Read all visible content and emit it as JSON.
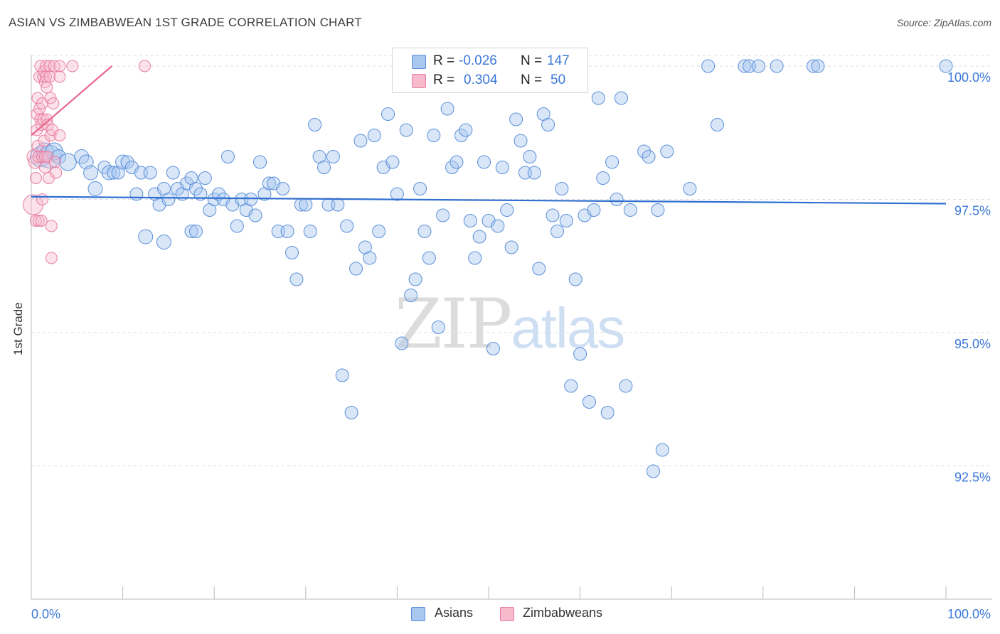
{
  "header": {
    "title": "ASIAN VS ZIMBABWEAN 1ST GRADE CORRELATION CHART",
    "source": "Source: ZipAtlas.com"
  },
  "watermark": {
    "zip": "ZIP",
    "atlas": "atlas"
  },
  "legend": {
    "asians": {
      "r_label": "R =",
      "r_value": "-0.026",
      "n_label": "N =",
      "n_value": "147"
    },
    "zimbabweans": {
      "r_label": "R =",
      "r_value": "0.304",
      "n_label": "N =",
      "n_value": "50"
    }
  },
  "bottom_legend": {
    "asians": "Asians",
    "zimbabweans": "Zimbabweans"
  },
  "colors": {
    "asian_fill": "#a9c8f0",
    "asian_stroke": "#5b8fd9",
    "asian_line": "#2f6fd0",
    "zim_fill": "#f7b9cc",
    "zim_stroke": "#e87ea0",
    "zim_line": "#e8678f",
    "tick_label": "#3b78d8",
    "grid": "#dcdcdc"
  },
  "chart_data": {
    "type": "scatter",
    "title": "ASIAN VS ZIMBABWEAN 1ST GRADE CORRELATION CHART",
    "xlabel": "",
    "ylabel": "1st Grade",
    "xlim": [
      0,
      100
    ],
    "ylim": [
      90.0,
      100.2
    ],
    "x_tick_labels": [
      "0.0%",
      "100.0%"
    ],
    "y_ticks": [
      92.5,
      95.0,
      97.5,
      100.0
    ],
    "y_tick_labels": [
      "92.5%",
      "95.0%",
      "97.5%",
      "100.0%"
    ],
    "grid": true,
    "legend_position": "top-center",
    "series": [
      {
        "name": "Asians",
        "r": -0.026,
        "n": 147,
        "trend": {
          "x": [
            0,
            100
          ],
          "y": [
            97.55,
            97.42
          ]
        },
        "points": [
          [
            1.0,
            98.3,
            14
          ],
          [
            1.5,
            98.4,
            12
          ],
          [
            2.0,
            98.3,
            16
          ],
          [
            2.5,
            98.4,
            12
          ],
          [
            3.0,
            98.3,
            10
          ],
          [
            4.0,
            98.2,
            12
          ],
          [
            5.5,
            98.3,
            10
          ],
          [
            6.0,
            98.2,
            10
          ],
          [
            6.5,
            98.0,
            10
          ],
          [
            7.0,
            97.7,
            10
          ],
          [
            8.0,
            98.1,
            9
          ],
          [
            8.5,
            98.0,
            10
          ],
          [
            9.0,
            98.0,
            9
          ],
          [
            9.5,
            98.0,
            9
          ],
          [
            10.0,
            98.2,
            10
          ],
          [
            10.5,
            98.2,
            9
          ],
          [
            11.0,
            98.1,
            9
          ],
          [
            11.5,
            97.6,
            9
          ],
          [
            12.0,
            98.0,
            9
          ],
          [
            13.0,
            98.0,
            9
          ],
          [
            13.5,
            97.6,
            9
          ],
          [
            12.5,
            96.8,
            10
          ],
          [
            14.0,
            97.4,
            9
          ],
          [
            14.5,
            97.7,
            9
          ],
          [
            15.0,
            97.5,
            9
          ],
          [
            15.5,
            98.0,
            9
          ],
          [
            16.0,
            97.7,
            9
          ],
          [
            16.5,
            97.6,
            9
          ],
          [
            17.0,
            97.8,
            9
          ],
          [
            17.5,
            97.9,
            9
          ],
          [
            18.0,
            97.7,
            9
          ],
          [
            14.5,
            96.7,
            10
          ],
          [
            17.5,
            96.9,
            9
          ],
          [
            18.0,
            96.9,
            9
          ],
          [
            18.5,
            97.6,
            9
          ],
          [
            19.0,
            97.9,
            9
          ],
          [
            19.5,
            97.3,
            9
          ],
          [
            20.0,
            97.5,
            9
          ],
          [
            20.5,
            97.6,
            9
          ],
          [
            21.0,
            97.5,
            9
          ],
          [
            21.5,
            98.3,
            9
          ],
          [
            22.0,
            97.4,
            9
          ],
          [
            22.5,
            97.0,
            9
          ],
          [
            23.0,
            97.5,
            9
          ],
          [
            23.5,
            97.3,
            9
          ],
          [
            24.0,
            97.5,
            9
          ],
          [
            24.5,
            97.2,
            9
          ],
          [
            25.0,
            98.2,
            9
          ],
          [
            25.5,
            97.6,
            9
          ],
          [
            26.0,
            97.8,
            9
          ],
          [
            26.5,
            97.8,
            9
          ],
          [
            27.0,
            96.9,
            9
          ],
          [
            27.5,
            97.7,
            9
          ],
          [
            28.0,
            96.9,
            9
          ],
          [
            28.5,
            96.5,
            9
          ],
          [
            29.0,
            96.0,
            9
          ],
          [
            29.5,
            97.4,
            9
          ],
          [
            30.0,
            97.4,
            9
          ],
          [
            30.5,
            96.9,
            9
          ],
          [
            31.0,
            98.9,
            9
          ],
          [
            31.5,
            98.3,
            9
          ],
          [
            32.0,
            98.1,
            9
          ],
          [
            32.5,
            97.4,
            9
          ],
          [
            33.0,
            98.3,
            9
          ],
          [
            33.5,
            97.4,
            9
          ],
          [
            34.0,
            94.2,
            9
          ],
          [
            34.5,
            97.0,
            9
          ],
          [
            35.0,
            93.5,
            9
          ],
          [
            35.5,
            96.2,
            9
          ],
          [
            36.0,
            98.6,
            9
          ],
          [
            36.5,
            96.6,
            9
          ],
          [
            37.0,
            96.4,
            9
          ],
          [
            37.5,
            98.7,
            9
          ],
          [
            38.0,
            96.9,
            9
          ],
          [
            38.5,
            98.1,
            9
          ],
          [
            39.0,
            99.1,
            9
          ],
          [
            39.5,
            98.2,
            9
          ],
          [
            40.0,
            97.6,
            9
          ],
          [
            40.5,
            94.8,
            9
          ],
          [
            41.0,
            98.8,
            9
          ],
          [
            41.5,
            95.7,
            9
          ],
          [
            42.0,
            96.0,
            9
          ],
          [
            42.5,
            97.7,
            9
          ],
          [
            43.0,
            96.9,
            9
          ],
          [
            43.5,
            96.4,
            9
          ],
          [
            44.0,
            98.7,
            9
          ],
          [
            44.5,
            95.1,
            9
          ],
          [
            45.0,
            97.2,
            9
          ],
          [
            45.5,
            99.2,
            9
          ],
          [
            46.0,
            98.1,
            9
          ],
          [
            46.5,
            98.2,
            9
          ],
          [
            47.0,
            98.7,
            9
          ],
          [
            47.5,
            98.8,
            9
          ],
          [
            48.0,
            97.1,
            9
          ],
          [
            48.5,
            96.4,
            9
          ],
          [
            49.0,
            96.8,
            9
          ],
          [
            49.5,
            98.2,
            9
          ],
          [
            50.0,
            97.1,
            9
          ],
          [
            50.5,
            94.7,
            9
          ],
          [
            51.0,
            97.0,
            9
          ],
          [
            51.5,
            98.1,
            9
          ],
          [
            52.0,
            97.3,
            9
          ],
          [
            52.5,
            96.6,
            9
          ],
          [
            53.0,
            99.0,
            9
          ],
          [
            53.5,
            98.6,
            9
          ],
          [
            54.0,
            98.0,
            9
          ],
          [
            54.5,
            98.3,
            9
          ],
          [
            55.0,
            98.0,
            9
          ],
          [
            55.5,
            96.2,
            9
          ],
          [
            56.0,
            99.1,
            9
          ],
          [
            56.5,
            98.9,
            9
          ],
          [
            57.0,
            97.2,
            9
          ],
          [
            57.5,
            96.9,
            9
          ],
          [
            58.0,
            97.7,
            9
          ],
          [
            58.5,
            97.1,
            9
          ],
          [
            59.0,
            94.0,
            9
          ],
          [
            59.5,
            96.0,
            9
          ],
          [
            60.0,
            94.6,
            9
          ],
          [
            60.5,
            97.2,
            9
          ],
          [
            61.0,
            93.7,
            9
          ],
          [
            61.5,
            97.3,
            9
          ],
          [
            62.0,
            99.4,
            9
          ],
          [
            62.5,
            97.9,
            9
          ],
          [
            63.0,
            93.5,
            9
          ],
          [
            63.5,
            98.2,
            9
          ],
          [
            64.0,
            97.5,
            9
          ],
          [
            64.5,
            99.4,
            9
          ],
          [
            65.0,
            94.0,
            9
          ],
          [
            65.5,
            97.3,
            9
          ],
          [
            67.0,
            98.4,
            9
          ],
          [
            67.5,
            98.3,
            9
          ],
          [
            68.0,
            92.4,
            9
          ],
          [
            68.5,
            97.3,
            9
          ],
          [
            69.0,
            92.8,
            9
          ],
          [
            69.5,
            98.4,
            9
          ],
          [
            72.0,
            97.7,
            9
          ],
          [
            74.0,
            100.0,
            9
          ],
          [
            75.0,
            98.9,
            9
          ],
          [
            78.0,
            100.0,
            9
          ],
          [
            78.5,
            100.0,
            9
          ],
          [
            79.5,
            100.0,
            9
          ],
          [
            81.5,
            100.0,
            9
          ],
          [
            85.5,
            100.0,
            9
          ],
          [
            86.0,
            100.0,
            9
          ],
          [
            100.0,
            100.0,
            9
          ]
        ]
      },
      {
        "name": "Zimbabweans",
        "r": 0.304,
        "n": 50,
        "trend": {
          "x": [
            0,
            8.8
          ],
          "y": [
            98.7,
            100.0
          ]
        },
        "points": [
          [
            0.2,
            97.4,
            14
          ],
          [
            0.3,
            98.3,
            10
          ],
          [
            0.4,
            98.2,
            9
          ],
          [
            0.5,
            97.9,
            8
          ],
          [
            0.5,
            97.1,
            8
          ],
          [
            0.6,
            98.8,
            8
          ],
          [
            0.6,
            99.1,
            8
          ],
          [
            0.7,
            99.4,
            8
          ],
          [
            0.7,
            98.5,
            8
          ],
          [
            0.8,
            98.3,
            8
          ],
          [
            0.8,
            97.1,
            8
          ],
          [
            0.9,
            99.8,
            8
          ],
          [
            0.9,
            99.2,
            8
          ],
          [
            1.0,
            100.0,
            8
          ],
          [
            1.0,
            99.0,
            8
          ],
          [
            1.1,
            98.9,
            8
          ],
          [
            1.1,
            97.1,
            8
          ],
          [
            1.2,
            99.3,
            8
          ],
          [
            1.2,
            98.3,
            8
          ],
          [
            1.3,
            99.8,
            8
          ],
          [
            1.3,
            99.0,
            8
          ],
          [
            1.4,
            99.9,
            8
          ],
          [
            1.4,
            98.6,
            8
          ],
          [
            1.5,
            99.7,
            8
          ],
          [
            1.5,
            98.3,
            8
          ],
          [
            1.6,
            100.0,
            8
          ],
          [
            1.6,
            99.8,
            8
          ],
          [
            1.7,
            99.6,
            8
          ],
          [
            1.7,
            99.0,
            8
          ],
          [
            1.8,
            98.9,
            8
          ],
          [
            1.8,
            98.3,
            8
          ],
          [
            1.9,
            97.9,
            8
          ],
          [
            2.0,
            100.0,
            8
          ],
          [
            2.0,
            99.8,
            8
          ],
          [
            2.1,
            99.4,
            8
          ],
          [
            2.1,
            98.7,
            8
          ],
          [
            2.2,
            96.4,
            8
          ],
          [
            2.2,
            97.0,
            8
          ],
          [
            2.3,
            98.8,
            8
          ],
          [
            2.4,
            99.3,
            8
          ],
          [
            2.5,
            100.0,
            8
          ],
          [
            2.6,
            98.2,
            8
          ],
          [
            2.7,
            98.0,
            8
          ],
          [
            3.1,
            100.0,
            8
          ],
          [
            3.1,
            98.7,
            8
          ],
          [
            3.1,
            99.8,
            8
          ],
          [
            4.5,
            100.0,
            8
          ],
          [
            1.5,
            98.1,
            8
          ],
          [
            1.2,
            97.5,
            8
          ],
          [
            12.4,
            100.0,
            8
          ]
        ]
      }
    ]
  }
}
